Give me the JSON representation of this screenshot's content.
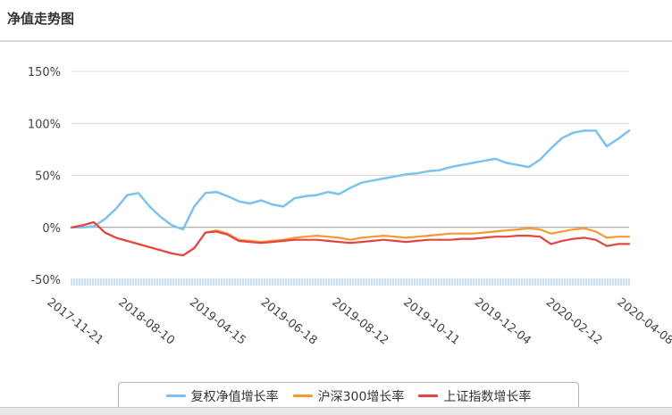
{
  "header": {
    "title": "净值走势图"
  },
  "chart_data": {
    "type": "line",
    "title": "",
    "xlabel": "",
    "ylabel": "",
    "ylim": [
      -50,
      150
    ],
    "yticks": [
      "150%",
      "100%",
      "50%",
      "0%",
      "-50%"
    ],
    "ytick_values": [
      150,
      100,
      50,
      0,
      -50
    ],
    "xtick_labels": [
      "2017-11-21",
      "2018-08-10",
      "2019-04-15",
      "2019-06-18",
      "2019-08-12",
      "2019-10-11",
      "2019-12-04",
      "2020-02-12",
      "2020-04-08"
    ],
    "legend_position": "bottom",
    "grid": true,
    "colors": {
      "fund": "#7cc2f0",
      "hs300": "#f59a2f",
      "sh": "#e54444"
    },
    "series": [
      {
        "name": "复权净值增长率",
        "key": "fund",
        "x": [
          0,
          0.02,
          0.04,
          0.06,
          0.08,
          0.1,
          0.12,
          0.14,
          0.16,
          0.18,
          0.2,
          0.22,
          0.24,
          0.26,
          0.28,
          0.3,
          0.32,
          0.34,
          0.36,
          0.38,
          0.4,
          0.42,
          0.44,
          0.46,
          0.48,
          0.5,
          0.52,
          0.54,
          0.56,
          0.58,
          0.6,
          0.62,
          0.64,
          0.66,
          0.68,
          0.7,
          0.72,
          0.74,
          0.76,
          0.78,
          0.8,
          0.82,
          0.84,
          0.86,
          0.88,
          0.9,
          0.92,
          0.94,
          0.96,
          0.98,
          1.0
        ],
        "values": [
          0,
          0,
          1,
          8,
          18,
          31,
          33,
          20,
          10,
          2,
          -2,
          20,
          33,
          34,
          30,
          25,
          23,
          26,
          22,
          20,
          28,
          30,
          31,
          34,
          32,
          38,
          43,
          45,
          47,
          49,
          51,
          52,
          54,
          55,
          58,
          60,
          62,
          64,
          66,
          62,
          60,
          58,
          65,
          76,
          86,
          91,
          93,
          93,
          78,
          85,
          93
        ]
      },
      {
        "name": "沪深300增长率",
        "key": "hs300",
        "x": [
          0,
          0.02,
          0.04,
          0.06,
          0.08,
          0.1,
          0.12,
          0.14,
          0.16,
          0.18,
          0.2,
          0.22,
          0.24,
          0.26,
          0.28,
          0.3,
          0.32,
          0.34,
          0.36,
          0.38,
          0.4,
          0.42,
          0.44,
          0.46,
          0.48,
          0.5,
          0.52,
          0.54,
          0.56,
          0.58,
          0.6,
          0.62,
          0.64,
          0.66,
          0.68,
          0.7,
          0.72,
          0.74,
          0.76,
          0.78,
          0.8,
          0.82,
          0.84,
          0.86,
          0.88,
          0.9,
          0.92,
          0.94,
          0.96,
          0.98,
          1.0
        ],
        "values": [
          0,
          2,
          5,
          -5,
          -10,
          -13,
          -16,
          -19,
          -22,
          -25,
          -27,
          -20,
          -5,
          -3,
          -6,
          -12,
          -13,
          -14,
          -13,
          -12,
          -10,
          -9,
          -8,
          -9,
          -10,
          -12,
          -10,
          -9,
          -8,
          -9,
          -10,
          -9,
          -8,
          -7,
          -6,
          -6,
          -6,
          -5,
          -4,
          -3,
          -2,
          -1,
          -2,
          -6,
          -4,
          -2,
          -1,
          -4,
          -10,
          -9,
          -9
        ]
      },
      {
        "name": "上证指数增长率",
        "key": "sh",
        "x": [
          0,
          0.02,
          0.04,
          0.06,
          0.08,
          0.1,
          0.12,
          0.14,
          0.16,
          0.18,
          0.2,
          0.22,
          0.24,
          0.26,
          0.28,
          0.3,
          0.32,
          0.34,
          0.36,
          0.38,
          0.4,
          0.42,
          0.44,
          0.46,
          0.48,
          0.5,
          0.52,
          0.54,
          0.56,
          0.58,
          0.6,
          0.62,
          0.64,
          0.66,
          0.68,
          0.7,
          0.72,
          0.74,
          0.76,
          0.78,
          0.8,
          0.82,
          0.84,
          0.86,
          0.88,
          0.9,
          0.92,
          0.94,
          0.96,
          0.98,
          1.0
        ],
        "values": [
          0,
          2,
          5,
          -5,
          -10,
          -13,
          -16,
          -19,
          -22,
          -25,
          -27,
          -20,
          -5,
          -4,
          -7,
          -13,
          -14,
          -15,
          -14,
          -13,
          -12,
          -12,
          -12,
          -13,
          -14,
          -15,
          -14,
          -13,
          -12,
          -13,
          -14,
          -13,
          -12,
          -12,
          -12,
          -11,
          -11,
          -10,
          -9,
          -9,
          -8,
          -8,
          -9,
          -16,
          -13,
          -11,
          -10,
          -12,
          -18,
          -16,
          -16
        ]
      }
    ]
  }
}
